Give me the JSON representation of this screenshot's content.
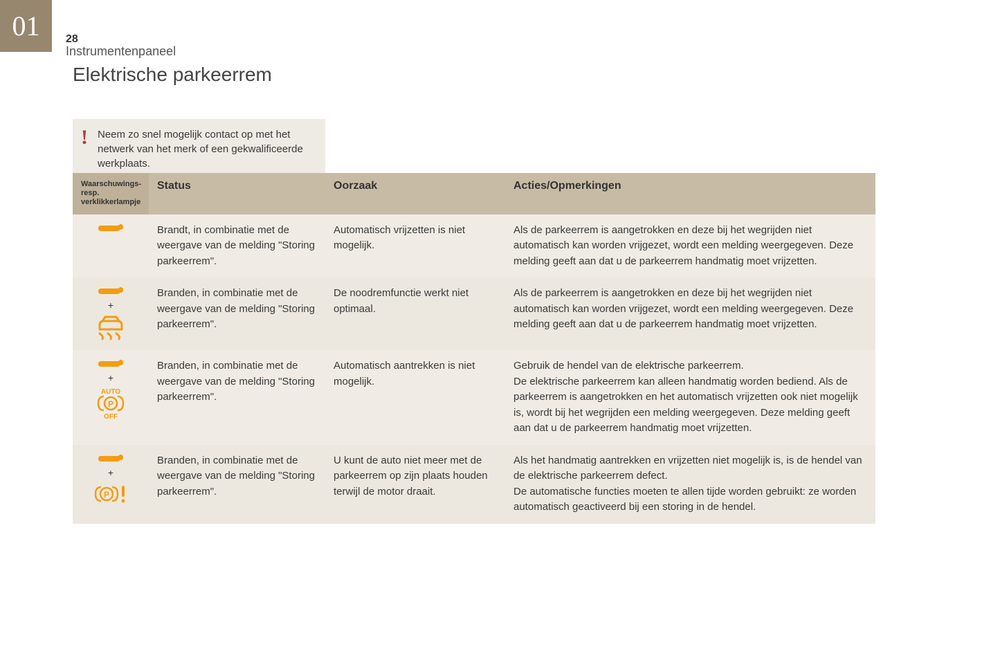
{
  "chapter_badge": "01",
  "page_number": "28",
  "section_label": "Instrumentenpaneel",
  "page_title": "Elektrische parkeerrem",
  "notice": {
    "text": "Neem zo snel mogelijk contact op met het netwerk van het merk of een gekwalificeerde werkplaats."
  },
  "colors": {
    "badge_bg": "#97876f",
    "header_bg": "#c8bba6",
    "header_lamp_bg": "#bfb199",
    "row_odd": "#f0ece5",
    "row_even": "#ece8e0",
    "notice_bg": "#eeeae4",
    "notice_bang": "#b33a3a",
    "icon_orange": "#f39c12"
  },
  "table": {
    "columns": {
      "lamp": "Waarschuwings- resp. verklikkerlampje",
      "status": "Status",
      "cause": "Oorzaak",
      "action": "Acties/Opmerkingen"
    },
    "rows": [
      {
        "icons": [
          "wrench"
        ],
        "status": "Brandt, in combinatie met de weergave van de melding \"Storing parkeerrem\".",
        "cause": "Automatisch vrijzetten is niet mogelijk.",
        "action": "Als de parkeerrem is aangetrokken en deze bij het wegrijden niet automatisch kan worden vrijgezet, wordt een melding weergegeven. Deze melding geeft aan dat u de parkeerrem handmatig moet vrijzetten."
      },
      {
        "icons": [
          "wrench",
          "plus",
          "car-skid"
        ],
        "status": "Branden, in combinatie met de weergave van de melding \"Storing parkeerrem\".",
        "cause": "De noodremfunctie werkt niet optimaal.",
        "action": "Als de parkeerrem is aangetrokken en deze bij het wegrijden niet automatisch kan worden vrijgezet, wordt een melding weergegeven. Deze melding geeft aan dat u de parkeerrem handmatig moet vrijzetten."
      },
      {
        "icons": [
          "wrench",
          "plus",
          "auto-p-off"
        ],
        "status": "Branden, in combinatie met de weergave van de melding \"Storing parkeerrem\".",
        "cause": "Automatisch aantrekken is niet mogelijk.",
        "action": "Gebruik de hendel van de elektrische parkeerrem.\nDe elektrische parkeerrem kan alleen handmatig worden bediend. Als de parkeerrem is aangetrokken en het automatisch vrijzetten ook niet mogelijk is, wordt bij het wegrijden een melding weergegeven. Deze melding geeft aan dat u de parkeerrem handmatig moet vrijzetten."
      },
      {
        "icons": [
          "wrench",
          "plus",
          "p-warning"
        ],
        "status": "Branden, in combinatie met de weergave van de melding \"Storing parkeerrem\".",
        "cause": "U kunt de auto niet meer met de parkeerrem op zijn plaats houden terwijl de motor draait.",
        "action": "Als het handmatig aantrekken en vrijzetten niet mogelijk is, is de hendel van de elektrische parkeerrem defect.\nDe automatische functies moeten te allen tijde worden gebruikt: ze worden automatisch geactiveerd bij een storing in de hendel."
      }
    ]
  }
}
